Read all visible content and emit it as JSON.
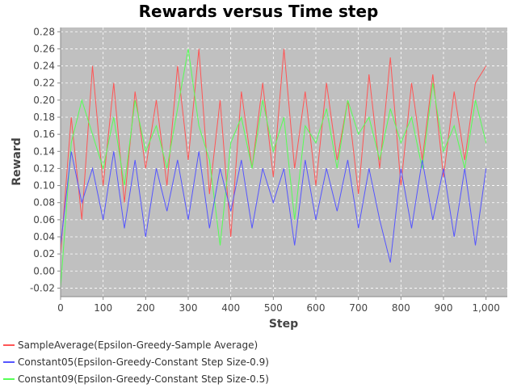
{
  "chart_data": {
    "type": "line",
    "title": "Rewards versus Time step",
    "xlabel": "Step",
    "ylabel": "Reward",
    "xlim": [
      0,
      1050
    ],
    "ylim": [
      -0.03,
      0.285
    ],
    "x_ticks": [
      0,
      100,
      200,
      300,
      400,
      500,
      600,
      700,
      800,
      900,
      1000
    ],
    "x_tick_labels": [
      "0",
      "100",
      "200",
      "300",
      "400",
      "500",
      "600",
      "700",
      "800",
      "900",
      "1,000"
    ],
    "y_ticks": [
      -0.02,
      0.0,
      0.02,
      0.04,
      0.06,
      0.08,
      0.1,
      0.12,
      0.14,
      0.16,
      0.18,
      0.2,
      0.22,
      0.24,
      0.26,
      0.28
    ],
    "y_tick_labels": [
      "-0.02",
      "0.00",
      "0.02",
      "0.04",
      "0.06",
      "0.08",
      "0.10",
      "0.12",
      "0.14",
      "0.16",
      "0.18",
      "0.20",
      "0.22",
      "0.24",
      "0.26",
      "0.28"
    ],
    "grid": true,
    "background": "#c0c0c0",
    "legend_position": "bottom-left",
    "series": [
      {
        "name": "SampleAverage(Epsilon-Greedy-Sample Average)",
        "color": "#ff5555",
        "x": [
          0,
          25,
          50,
          75,
          100,
          125,
          150,
          175,
          200,
          225,
          250,
          275,
          300,
          325,
          350,
          375,
          400,
          425,
          450,
          475,
          500,
          525,
          550,
          575,
          600,
          625,
          650,
          675,
          700,
          725,
          750,
          775,
          800,
          825,
          850,
          875,
          900,
          925,
          950,
          975,
          1000
        ],
        "y": [
          0.02,
          0.18,
          0.06,
          0.24,
          0.1,
          0.22,
          0.08,
          0.21,
          0.12,
          0.2,
          0.1,
          0.24,
          0.13,
          0.26,
          0.09,
          0.2,
          0.04,
          0.21,
          0.12,
          0.22,
          0.11,
          0.26,
          0.12,
          0.21,
          0.1,
          0.22,
          0.13,
          0.2,
          0.09,
          0.23,
          0.12,
          0.25,
          0.1,
          0.22,
          0.13,
          0.23,
          0.11,
          0.21,
          0.13,
          0.22,
          0.24
        ]
      },
      {
        "name": "Constant05(Epsilon-Greedy-Constant Step Size-0.9)",
        "color": "#5555ff",
        "x": [
          0,
          25,
          50,
          75,
          100,
          125,
          150,
          175,
          200,
          225,
          250,
          275,
          300,
          325,
          350,
          375,
          400,
          425,
          450,
          475,
          500,
          525,
          550,
          575,
          600,
          625,
          650,
          675,
          700,
          725,
          750,
          775,
          800,
          825,
          850,
          875,
          900,
          925,
          950,
          975,
          1000
        ],
        "y": [
          0.03,
          0.14,
          0.08,
          0.12,
          0.06,
          0.14,
          0.05,
          0.13,
          0.04,
          0.12,
          0.07,
          0.13,
          0.06,
          0.14,
          0.05,
          0.12,
          0.07,
          0.13,
          0.05,
          0.12,
          0.08,
          0.12,
          0.03,
          0.13,
          0.06,
          0.12,
          0.07,
          0.13,
          0.05,
          0.12,
          0.06,
          0.01,
          0.12,
          0.05,
          0.13,
          0.06,
          0.12,
          0.04,
          0.12,
          0.03,
          0.12
        ]
      },
      {
        "name": "Constant09(Epsilon-Greedy-Constant Step Size-0.5)",
        "color": "#55ff55",
        "x": [
          0,
          25,
          50,
          75,
          100,
          125,
          150,
          175,
          200,
          225,
          250,
          275,
          300,
          325,
          350,
          375,
          400,
          425,
          450,
          475,
          500,
          525,
          550,
          575,
          600,
          625,
          650,
          675,
          700,
          725,
          750,
          775,
          800,
          825,
          850,
          875,
          900,
          925,
          950,
          975,
          1000
        ],
        "y": [
          -0.02,
          0.15,
          0.2,
          0.16,
          0.12,
          0.18,
          0.1,
          0.2,
          0.14,
          0.17,
          0.12,
          0.19,
          0.26,
          0.17,
          0.13,
          0.03,
          0.15,
          0.18,
          0.12,
          0.2,
          0.14,
          0.18,
          0.06,
          0.17,
          0.15,
          0.19,
          0.12,
          0.2,
          0.16,
          0.18,
          0.13,
          0.19,
          0.15,
          0.18,
          0.12,
          0.22,
          0.14,
          0.17,
          0.12,
          0.2,
          0.15
        ]
      }
    ]
  }
}
